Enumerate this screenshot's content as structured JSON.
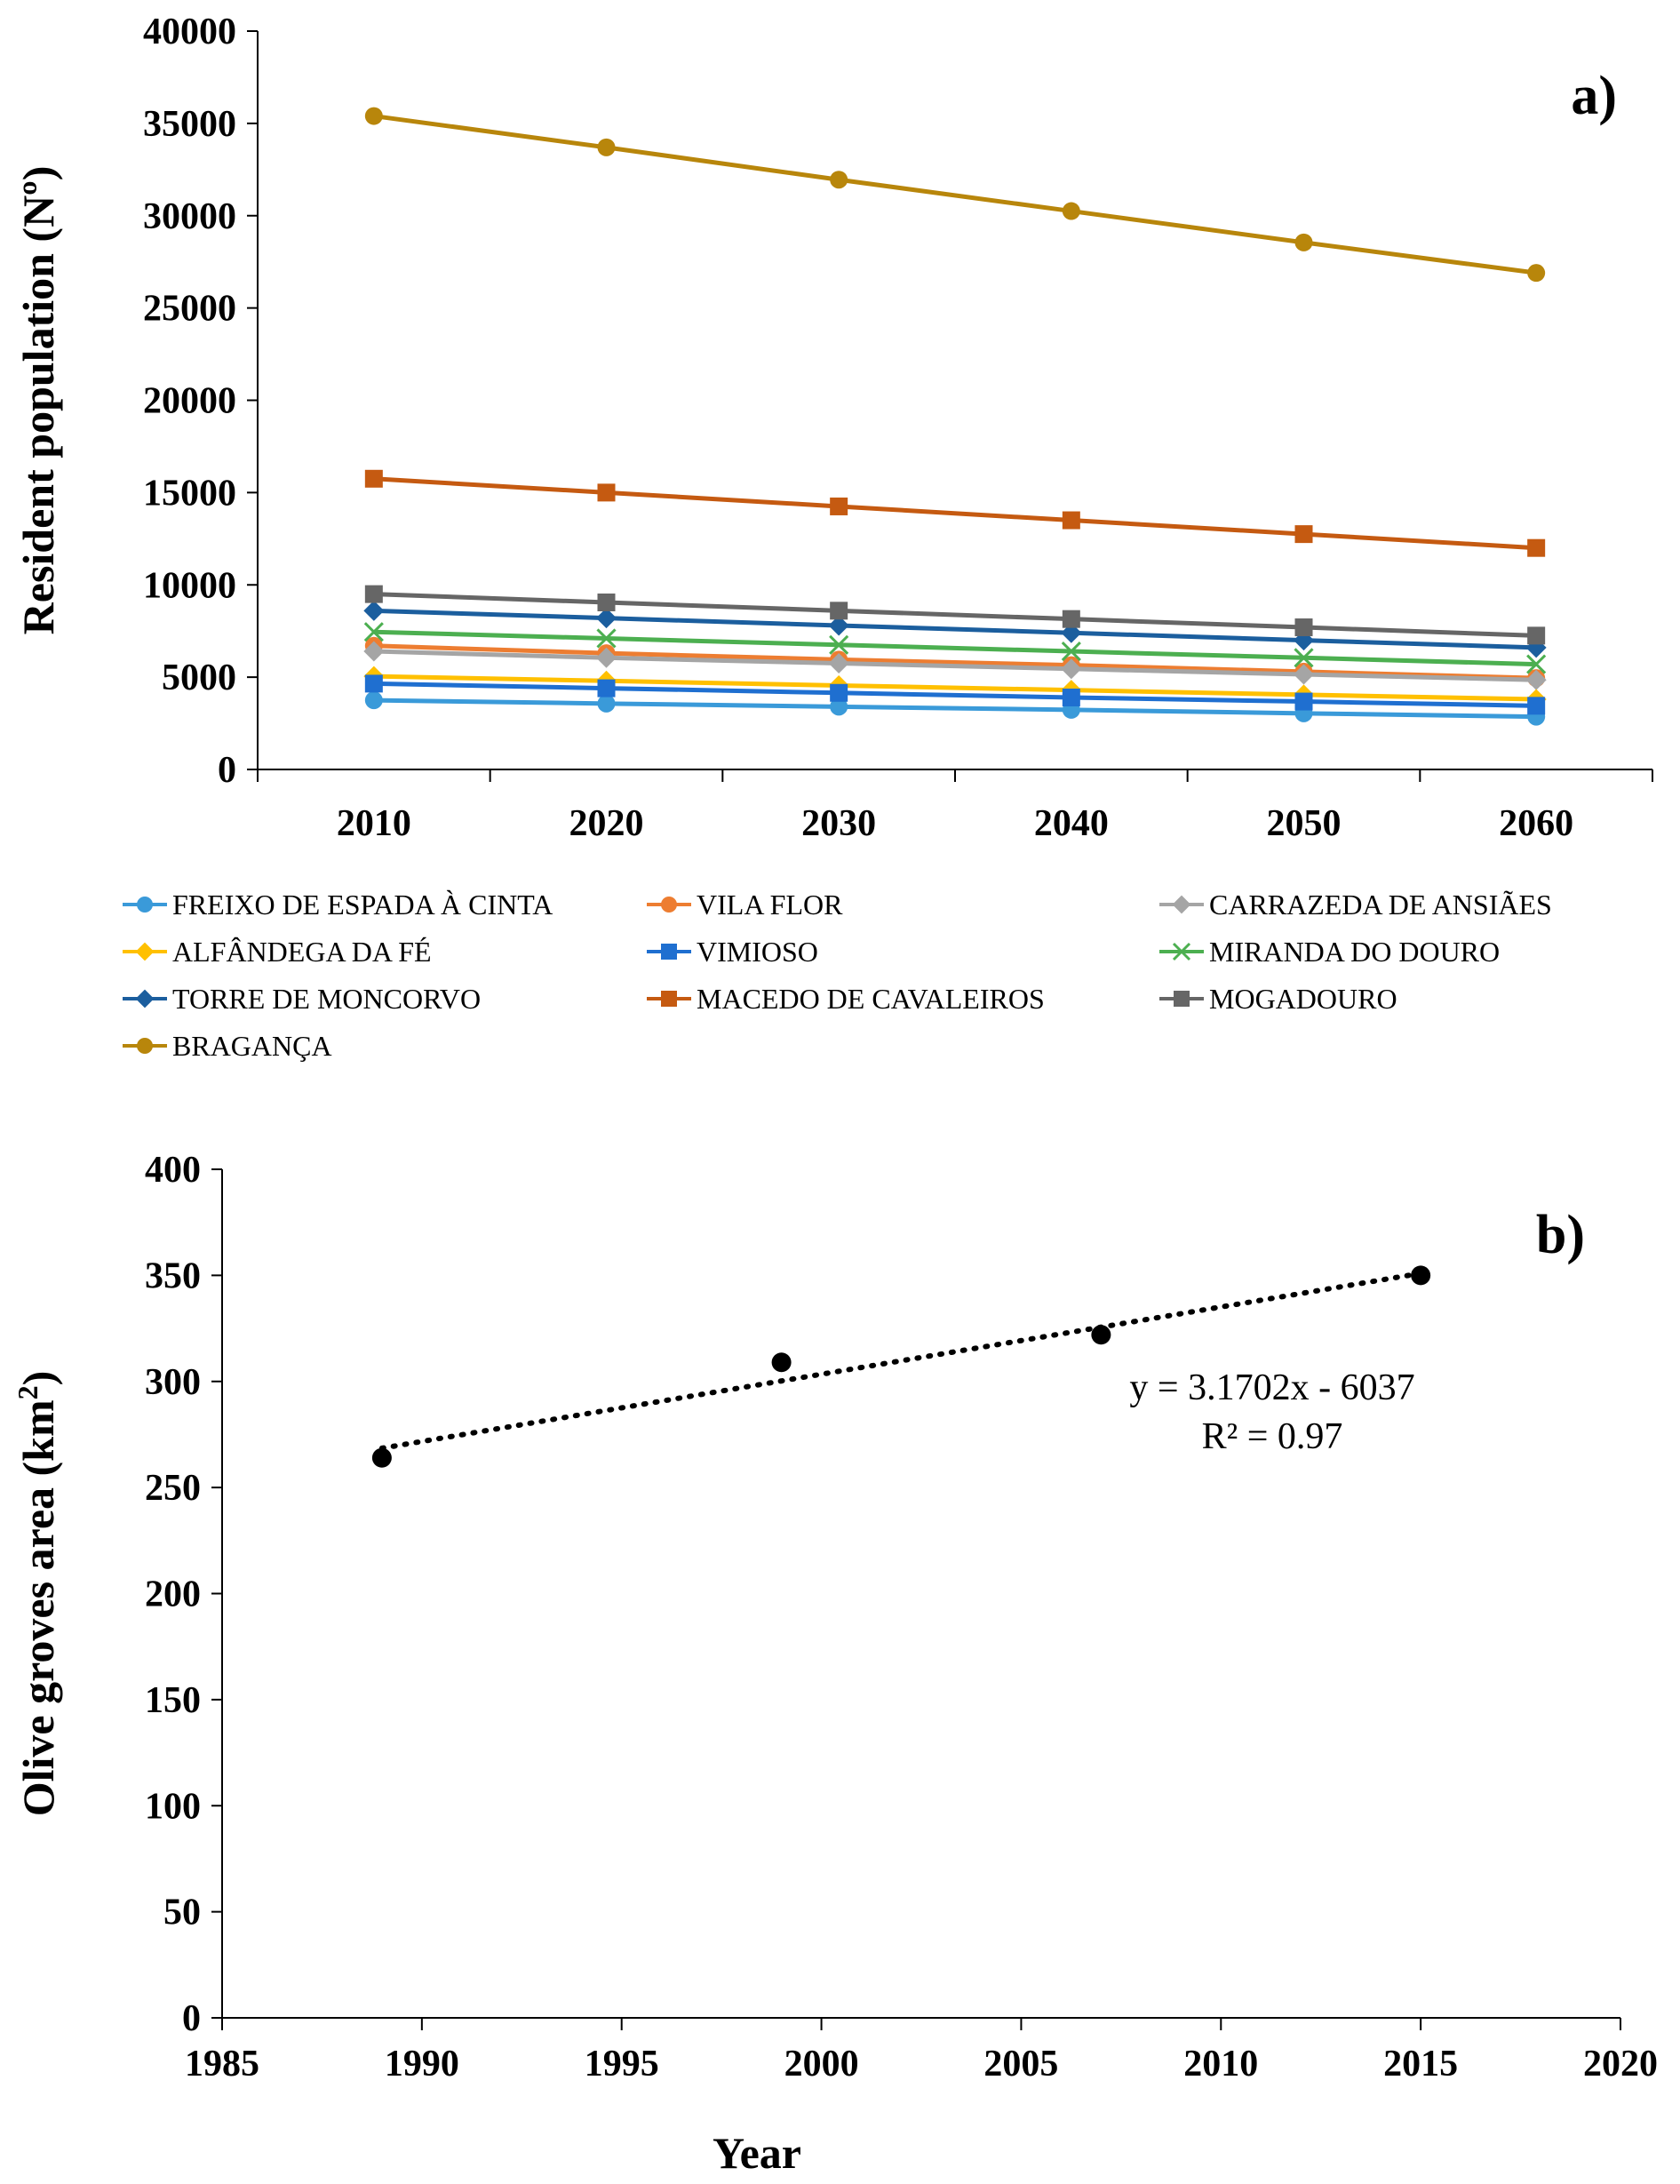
{
  "chart_data": [
    {
      "type": "line",
      "panel_label": "a)",
      "title": "",
      "xlabel": "",
      "ylabel": "Resident population (Nº)",
      "ylim": [
        0,
        40000
      ],
      "yticks": [
        0,
        5000,
        10000,
        15000,
        20000,
        25000,
        30000,
        35000,
        40000
      ],
      "categories": [
        "2010",
        "2020",
        "2030",
        "2040",
        "2050",
        "2060"
      ],
      "grid": false,
      "legend_position": "bottom",
      "series": [
        {
          "name": "FREIXO DE ESPADA À CINTA",
          "color": "#3a9ad9",
          "marker": "circle",
          "values": [
            3750,
            3570,
            3400,
            3230,
            3040,
            2860
          ]
        },
        {
          "name": "VILA FLOR",
          "color": "#ed7d31",
          "marker": "circle",
          "values": [
            6700,
            6300,
            5950,
            5650,
            5300,
            4950
          ]
        },
        {
          "name": "CARRAZEDA DE ANSIÃES",
          "color": "#a5a5a5",
          "marker": "diamond",
          "values": [
            6400,
            6050,
            5750,
            5450,
            5150,
            4850
          ]
        },
        {
          "name": "ALFÂNDEGA DA FÉ",
          "color": "#ffc000",
          "marker": "diamond",
          "values": [
            5050,
            4800,
            4550,
            4300,
            4050,
            3800
          ]
        },
        {
          "name": "VIMIOSO",
          "color": "#1f6fd0",
          "marker": "square",
          "values": [
            4650,
            4400,
            4150,
            3900,
            3680,
            3450
          ]
        },
        {
          "name": "MIRANDA DO DOURO",
          "color": "#4caf50",
          "marker": "x",
          "values": [
            7450,
            7100,
            6750,
            6400,
            6050,
            5700
          ]
        },
        {
          "name": "TORRE DE MONCORVO",
          "color": "#1b5e9e",
          "marker": "diamond",
          "values": [
            8600,
            8200,
            7800,
            7400,
            7000,
            6600
          ]
        },
        {
          "name": "MACEDO DE CAVALEIROS",
          "color": "#c55a11",
          "marker": "square",
          "values": [
            15750,
            15000,
            14250,
            13500,
            12750,
            12000
          ]
        },
        {
          "name": "MOGADOURO",
          "color": "#666666",
          "marker": "square",
          "values": [
            9500,
            9050,
            8600,
            8150,
            7700,
            7250
          ]
        },
        {
          "name": "BRAGANÇA",
          "color": "#b8860b",
          "marker": "circle",
          "values": [
            35400,
            33700,
            31950,
            30250,
            28550,
            26900
          ]
        }
      ]
    },
    {
      "type": "scatter",
      "panel_label": "b)",
      "title": "",
      "xlabel": "Year",
      "ylabel_main": "Olive groves area (km",
      "ylabel_sup": "2",
      "ylabel_end": ")",
      "xlim": [
        1985,
        2020
      ],
      "ylim": [
        0,
        400
      ],
      "xticks": [
        1985,
        1990,
        1995,
        2000,
        2005,
        2010,
        2015,
        2020
      ],
      "yticks": [
        0,
        50,
        100,
        150,
        200,
        250,
        300,
        350,
        400
      ],
      "grid": false,
      "points": [
        {
          "x": 1989,
          "y": 264
        },
        {
          "x": 1999,
          "y": 309
        },
        {
          "x": 2007,
          "y": 322
        },
        {
          "x": 2015,
          "y": 350
        }
      ],
      "trendline": {
        "type": "linear",
        "slope": 3.1702,
        "intercept": -6037,
        "x_range": [
          1989,
          2015
        ],
        "equation": "y = 3.1702x - 6037",
        "r_squared": "R² = 0.97"
      }
    }
  ]
}
